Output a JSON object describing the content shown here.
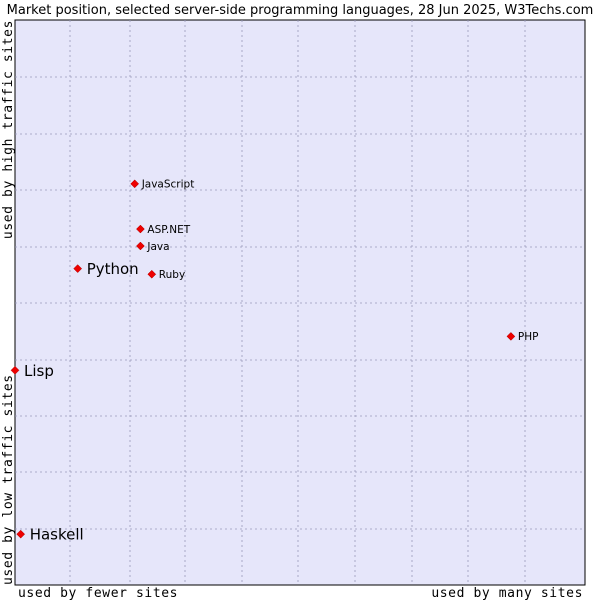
{
  "chart_data": {
    "type": "scatter",
    "title": "Market position, selected server-side programming languages, 28 Jun 2025, W3Techs.com",
    "xlabel_low": "used by fewer sites",
    "xlabel_high": "used by many sites",
    "ylabel_low": "used by low traffic sites",
    "ylabel_high": "used by high traffic sites",
    "xlim": [
      0,
      100
    ],
    "ylim": [
      0,
      100
    ],
    "grid": true,
    "points": [
      {
        "name": "JavaScript",
        "x": 21,
        "y": 71,
        "emphasis": false
      },
      {
        "name": "ASP.NET",
        "x": 22,
        "y": 63,
        "emphasis": false
      },
      {
        "name": "Java",
        "x": 22,
        "y": 60,
        "emphasis": false
      },
      {
        "name": "Python",
        "x": 11,
        "y": 56,
        "emphasis": true
      },
      {
        "name": "Ruby",
        "x": 24,
        "y": 55,
        "emphasis": false
      },
      {
        "name": "PHP",
        "x": 87,
        "y": 44,
        "emphasis": false
      },
      {
        "name": "Lisp",
        "x": 0,
        "y": 38,
        "emphasis": true
      },
      {
        "name": "Haskell",
        "x": 1,
        "y": 9,
        "emphasis": true
      }
    ]
  },
  "colors": {
    "plot_bg": "#e6e6fa",
    "grid": "#9999bb",
    "marker": "#ee0000",
    "marker_stroke": "#aa0000",
    "text": "#000000"
  }
}
